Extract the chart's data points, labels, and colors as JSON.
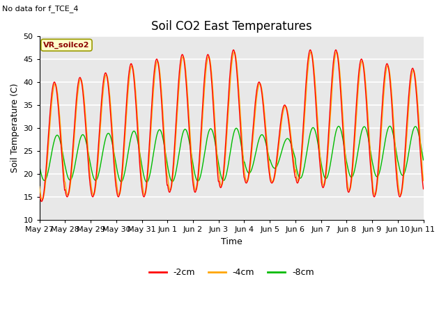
{
  "title": "Soil CO2 East Temperatures",
  "no_data_label": "No data for f_TCE_4",
  "annotation_label": "VR_soilco2",
  "xlabel": "Time",
  "ylabel": "Soil Temperature (C)",
  "ylim": [
    10,
    50
  ],
  "background_color": "#e8e8e8",
  "grid_color": "white",
  "colors": {
    "-2cm": "#ff0000",
    "-4cm": "#ffa500",
    "-8cm": "#00bb00"
  },
  "x_tick_labels": [
    "May 27",
    "May 28",
    "May 29",
    "May 30",
    "May 31",
    "Jun 1",
    "Jun 2",
    "Jun 3",
    "Jun 4",
    "Jun 5",
    "Jun 6",
    "Jun 7",
    "Jun 8",
    "Jun 9",
    "Jun 10",
    "Jun 11"
  ],
  "legend_labels": [
    "-2cm",
    "-4cm",
    "-8cm"
  ],
  "title_fontsize": 12,
  "label_fontsize": 9,
  "tick_fontsize": 8
}
